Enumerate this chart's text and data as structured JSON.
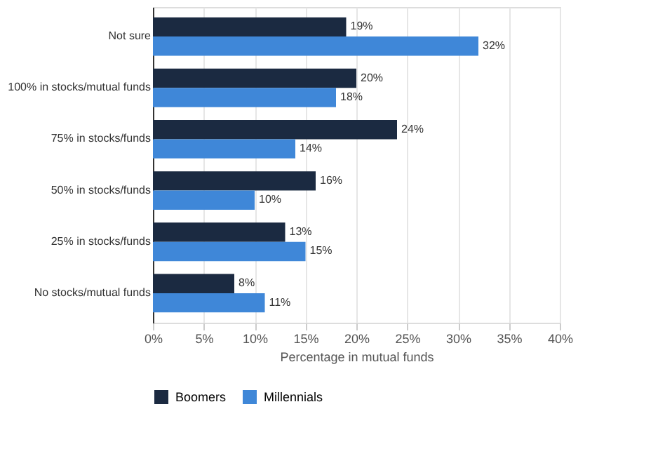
{
  "chart_data": {
    "type": "bar",
    "orientation": "horizontal",
    "xlabel": "Percentage in mutual funds",
    "categories": [
      "Not sure",
      "100% in stocks/mutual funds",
      "75% in stocks/funds",
      "50% in stocks/funds",
      "25% in stocks/funds",
      "No stocks/mutual funds"
    ],
    "series": [
      {
        "name": "Boomers",
        "color": "#1b2a41",
        "values": [
          19,
          20,
          24,
          16,
          13,
          8
        ],
        "value_labels": [
          "19%",
          "20%",
          "24%",
          "16%",
          "13%",
          "8%"
        ]
      },
      {
        "name": "Millennials",
        "color": "#3f87d8",
        "values": [
          32,
          18,
          14,
          10,
          15,
          11
        ],
        "value_labels": [
          "32%",
          "18%",
          "14%",
          "10%",
          "15%",
          "11%"
        ]
      }
    ],
    "xlim": [
      0,
      40
    ],
    "xticks": [
      {
        "value": 0,
        "label": "0%"
      },
      {
        "value": 5,
        "label": "5%"
      },
      {
        "value": 10,
        "label": "10%"
      },
      {
        "value": 15,
        "label": "15%"
      },
      {
        "value": 20,
        "label": "20%"
      },
      {
        "value": 25,
        "label": "25%"
      },
      {
        "value": 30,
        "label": "30%"
      },
      {
        "value": 35,
        "label": "35%"
      },
      {
        "value": 40,
        "label": "40%"
      }
    ],
    "grid": "x",
    "legend": "bottom"
  }
}
